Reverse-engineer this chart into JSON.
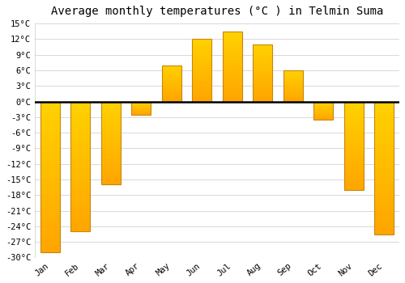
{
  "title": "Average monthly temperatures (°C ) in Telmin Suma",
  "months": [
    "Jan",
    "Feb",
    "Mar",
    "Apr",
    "May",
    "Jun",
    "Jul",
    "Aug",
    "Sep",
    "Oct",
    "Nov",
    "Dec"
  ],
  "values": [
    -29,
    -25,
    -16,
    -2.5,
    7,
    12,
    13.5,
    11,
    6,
    -3.5,
    -17,
    -25.5
  ],
  "ylim": [
    -30,
    15
  ],
  "yticks": [
    -30,
    -27,
    -24,
    -21,
    -18,
    -15,
    -12,
    -9,
    -6,
    -3,
    0,
    3,
    6,
    9,
    12,
    15
  ],
  "ytick_labels": [
    "-30°C",
    "-27°C",
    "-24°C",
    "-21°C",
    "-18°C",
    "-15°C",
    "-12°C",
    "-9°C",
    "-6°C",
    "-3°C",
    "0°C",
    "3°C",
    "6°C",
    "9°C",
    "12°C",
    "15°C"
  ],
  "bar_color_inner": "#FFA500",
  "bar_color_outer": "#FFD000",
  "bar_edge_color": "#C8860A",
  "background_color": "#ffffff",
  "grid_color": "#d8d8d8",
  "zero_line_color": "#000000",
  "title_fontsize": 10,
  "tick_fontsize": 7.5,
  "bar_width": 0.65
}
